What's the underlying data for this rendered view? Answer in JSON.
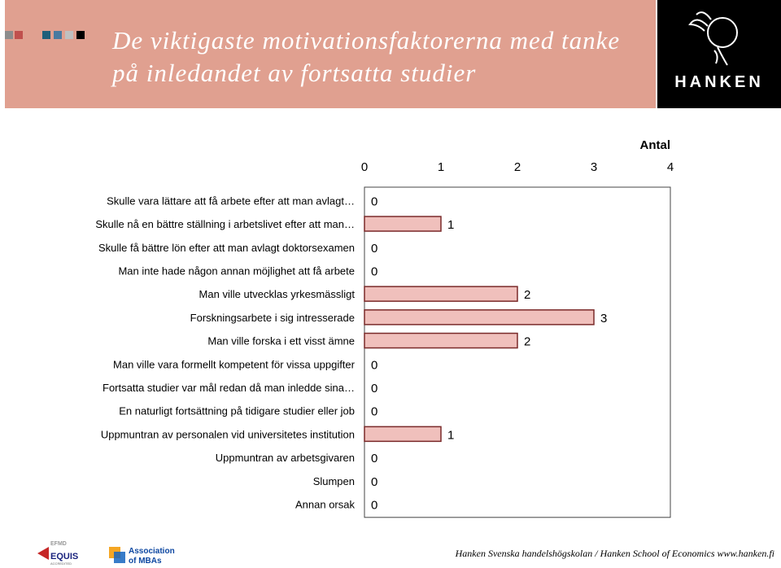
{
  "slide": {
    "title": "De viktigaste motivationsfaktorerna med tanke på inledandet av fortsatta studier",
    "logo": "HANKEN",
    "footer": "Hanken Svenska handelshögskolan / Hanken School of Economics www.hanken.fi",
    "accreditation_logos": [
      "equis-logo",
      "association-of-mbas-logo"
    ],
    "header_color": "#e0a090",
    "swatch_colors": [
      "#8c8c8c",
      "#c0504d",
      "#e0a090",
      "#1f5f7a",
      "#4a7aa0",
      "#c0c0c0",
      "#000000"
    ]
  },
  "chart_data": {
    "type": "bar",
    "orientation": "horizontal",
    "title": "",
    "xlabel": "Antal",
    "ylabel": "",
    "xlim": [
      0,
      4
    ],
    "x_ticks": [
      "0",
      "1",
      "2",
      "3",
      "4"
    ],
    "x_axis_position": "top",
    "grid": false,
    "bar_color": "#f0c0bc",
    "bar_edge_color": "#7a2a2a",
    "categories": [
      "Skulle vara lättare att få arbete efter att man avlagt…",
      "Skulle nå en bättre ställning i arbetslivet efter att man…",
      "Skulle få bättre lön efter att man avlagt doktorsexamen",
      "Man inte hade någon annan möjlighet att få arbete",
      "Man ville utvecklas yrkesmässligt",
      "Forskningsarbete i sig intresserade",
      "Man ville forska i ett visst ämne",
      "Man ville vara formellt kompetent för vissa uppgifter",
      "Fortsatta studier var mål redan då man inledde sina…",
      "En naturligt fortsättning på tidigare studier eller job",
      "Uppmuntran av personalen vid universitetes institution",
      "Uppmuntran av arbetsgivaren",
      "Slumpen",
      "Annan orsak"
    ],
    "values": [
      0,
      1,
      0,
      0,
      2,
      3,
      2,
      0,
      0,
      0,
      1,
      0,
      0,
      0
    ],
    "data_labels": [
      "0",
      "1",
      "0",
      "0",
      "2",
      "3",
      "2",
      "0",
      "0",
      "0",
      "1",
      "0",
      "0",
      "0"
    ]
  }
}
